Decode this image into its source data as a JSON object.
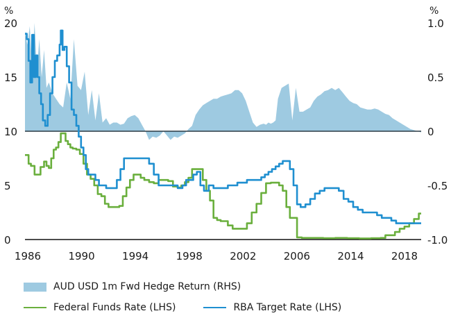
{
  "chart_data": {
    "type": "line",
    "title": "",
    "x_tick_labels": [
      "1986",
      "1990",
      "1994",
      "1998",
      "2002",
      "2006",
      "2014",
      "2018"
    ],
    "x_range": [
      1986,
      2019.2
    ],
    "left_axis": {
      "unit": "%",
      "ylim": [
        0,
        20
      ],
      "ticks": [
        "0",
        "5",
        "10",
        "15",
        "20"
      ],
      "label": "LHS"
    },
    "right_axis": {
      "unit": "%",
      "ylim": [
        -1.0,
        1.0
      ],
      "ticks": [
        "-1.0",
        "-0.5",
        "0",
        "0.5",
        "1.0"
      ],
      "label": "RHS"
    },
    "grid": false,
    "legend_position": "bottom-left",
    "series": [
      {
        "name": "AUD USD 1m Fwd Hedge Return (RHS)",
        "type": "area",
        "axis": "right",
        "color": "#9ecae1",
        "x": [
          1986.0,
          1986.2,
          1986.4,
          1986.6,
          1986.8,
          1987.0,
          1987.2,
          1987.4,
          1987.6,
          1987.8,
          1988.0,
          1988.3,
          1988.6,
          1988.9,
          1989.2,
          1989.5,
          1989.8,
          1990.1,
          1990.4,
          1990.7,
          1991.0,
          1991.3,
          1991.6,
          1991.9,
          1992.2,
          1992.5,
          1992.8,
          1993.1,
          1993.4,
          1993.7,
          1994.0,
          1994.3,
          1994.6,
          1994.9,
          1995.2,
          1995.5,
          1995.8,
          1996.1,
          1996.4,
          1996.7,
          1997.0,
          1997.3,
          1997.6,
          1997.9,
          1998.2,
          1998.5,
          1998.8,
          1999.1,
          1999.4,
          1999.7,
          2000.0,
          2000.3,
          2000.6,
          2000.9,
          2001.2,
          2001.5,
          2001.8,
          2002.1,
          2002.4,
          2002.7,
          2003.0,
          2003.3,
          2003.6,
          2003.9,
          2004.2,
          2004.5,
          2004.8,
          2005.1,
          2005.4,
          2005.7,
          2006.0,
          2006.2,
          2006.4,
          2006.6,
          2006.8,
          2007.0,
          2007.2,
          2007.5,
          2007.8,
          2008.1,
          2008.4,
          2008.7,
          2009.0,
          2009.3,
          2009.6,
          2009.9,
          2010.2,
          2010.5,
          2010.8,
          2011.1,
          2011.4,
          2011.7,
          2012.0,
          2012.3,
          2012.6,
          2012.9,
          2013.2,
          2013.5,
          2013.8,
          2014.1,
          2014.4,
          2014.7,
          2015.0,
          2015.3,
          2015.6,
          2015.9,
          2016.2,
          2016.5,
          2016.8,
          2017.1,
          2017.4,
          2017.7,
          2018.0,
          2018.3,
          2018.6,
          2018.9,
          2019.2
        ],
        "values": [
          0.92,
          0.8,
          0.97,
          0.6,
          1.0,
          0.55,
          0.85,
          0.5,
          0.75,
          0.4,
          0.45,
          0.35,
          0.3,
          0.25,
          0.22,
          0.45,
          0.3,
          0.85,
          0.42,
          0.38,
          0.55,
          0.15,
          0.38,
          0.1,
          0.35,
          0.08,
          0.12,
          0.06,
          0.08,
          0.08,
          0.06,
          0.07,
          0.12,
          0.14,
          0.15,
          0.12,
          0.06,
          0.0,
          -0.08,
          -0.05,
          -0.06,
          -0.04,
          0.0,
          -0.04,
          -0.08,
          -0.05,
          -0.06,
          -0.04,
          -0.02,
          0.02,
          0.05,
          0.15,
          0.2,
          0.24,
          0.26,
          0.28,
          0.3,
          0.3,
          0.32,
          0.33,
          0.34,
          0.35,
          0.38,
          0.38,
          0.35,
          0.28,
          0.18,
          0.08,
          0.04,
          0.06,
          0.07,
          0.06,
          0.08,
          0.07,
          0.08,
          0.1,
          0.3,
          0.4,
          0.42,
          0.44,
          0.1,
          0.4,
          0.18,
          0.18,
          0.2,
          0.22,
          0.28,
          0.32,
          0.34,
          0.37,
          0.38,
          0.4,
          0.38,
          0.4,
          0.36,
          0.32,
          0.28,
          0.26,
          0.25,
          0.22,
          0.21,
          0.2,
          0.2,
          0.21,
          0.2,
          0.18,
          0.16,
          0.15,
          0.12,
          0.1,
          0.08,
          0.06,
          0.04,
          0.02,
          0.01,
          0.0,
          -0.01
        ]
      },
      {
        "name": "Federal Funds Rate (LHS)",
        "type": "line",
        "axis": "left",
        "color": "#6aaf3d",
        "x": [
          1986.0,
          1986.3,
          1986.5,
          1986.8,
          1987.0,
          1987.3,
          1987.6,
          1987.8,
          1988.0,
          1988.2,
          1988.4,
          1988.6,
          1988.8,
          1989.0,
          1989.2,
          1989.4,
          1989.6,
          1989.8,
          1990.0,
          1990.3,
          1990.6,
          1990.9,
          1991.2,
          1991.5,
          1991.8,
          1992.1,
          1992.4,
          1992.7,
          1993.0,
          1993.3,
          1993.6,
          1993.9,
          1994.2,
          1994.5,
          1994.8,
          1995.1,
          1995.4,
          1995.7,
          1996.0,
          1996.4,
          1996.8,
          1997.2,
          1997.6,
          1998.0,
          1998.4,
          1998.8,
          1999.1,
          1999.4,
          1999.7,
          2000.0,
          2000.3,
          2000.6,
          2000.9,
          2001.2,
          2001.5,
          2001.8,
          2002.1,
          2002.4,
          2002.7,
          2003.0,
          2003.4,
          2003.8,
          2004.2,
          2004.6,
          2005.0,
          2005.4,
          2005.8,
          2006.2,
          2006.6,
          2007.0,
          2007.3,
          2007.6,
          2007.9,
          2008.2,
          2008.5,
          2008.8,
          2009.2,
          2010.0,
          2011.0,
          2012.0,
          2013.0,
          2014.0,
          2015.0,
          2015.8,
          2016.2,
          2016.6,
          2017.0,
          2017.4,
          2017.8,
          2018.2,
          2018.6,
          2019.0,
          2019.2
        ],
        "values": [
          7.8,
          7.0,
          6.8,
          6.0,
          6.0,
          6.7,
          7.2,
          6.8,
          6.6,
          7.5,
          8.3,
          8.5,
          9.0,
          9.8,
          9.8,
          9.1,
          8.8,
          8.5,
          8.4,
          8.3,
          7.9,
          7.0,
          6.0,
          5.6,
          5.0,
          4.2,
          4.0,
          3.3,
          3.0,
          3.0,
          3.0,
          3.1,
          4.0,
          4.8,
          5.5,
          6.0,
          6.0,
          5.7,
          5.5,
          5.3,
          5.2,
          5.5,
          5.5,
          5.4,
          4.9,
          4.8,
          5.0,
          5.3,
          5.7,
          6.5,
          6.5,
          6.5,
          5.5,
          4.5,
          3.6,
          2.0,
          1.8,
          1.7,
          1.7,
          1.3,
          1.0,
          1.0,
          1.0,
          1.5,
          2.5,
          3.3,
          4.3,
          5.2,
          5.25,
          5.25,
          5.0,
          4.5,
          3.0,
          2.0,
          2.0,
          0.2,
          0.15,
          0.15,
          0.12,
          0.15,
          0.12,
          0.1,
          0.12,
          0.15,
          0.4,
          0.4,
          0.7,
          1.0,
          1.2,
          1.5,
          1.9,
          2.4,
          2.4
        ]
      },
      {
        "name": "RBA Target Rate (LHS)",
        "type": "line",
        "axis": "left",
        "color": "#1f8fd0",
        "x": [
          1986.0,
          1986.15,
          1986.3,
          1986.45,
          1986.6,
          1986.75,
          1986.9,
          1987.05,
          1987.2,
          1987.35,
          1987.5,
          1987.7,
          1987.9,
          1988.1,
          1988.3,
          1988.5,
          1988.7,
          1988.9,
          1989.0,
          1989.15,
          1989.3,
          1989.5,
          1989.7,
          1989.9,
          1990.1,
          1990.3,
          1990.5,
          1990.7,
          1990.9,
          1991.1,
          1991.3,
          1991.6,
          1991.9,
          1992.2,
          1992.5,
          1992.8,
          1993.1,
          1993.4,
          1993.7,
          1994.0,
          1994.3,
          1994.6,
          1994.9,
          1995.2,
          1995.6,
          1996.0,
          1996.4,
          1996.8,
          1997.2,
          1997.6,
          1998.0,
          1998.4,
          1998.8,
          1999.2,
          1999.5,
          1999.8,
          2000.1,
          2000.4,
          2000.7,
          2001.0,
          2001.4,
          2001.8,
          2002.2,
          2002.6,
          2003.0,
          2003.4,
          2003.8,
          2004.2,
          2004.6,
          2005.0,
          2005.4,
          2005.8,
          2006.1,
          2006.4,
          2006.7,
          2007.0,
          2007.3,
          2007.6,
          2007.9,
          2008.2,
          2008.5,
          2008.8,
          2009.1,
          2009.5,
          2009.9,
          2010.3,
          2010.7,
          2011.1,
          2011.5,
          2011.9,
          2012.3,
          2012.7,
          2013.1,
          2013.5,
          2013.9,
          2014.3,
          2014.7,
          2015.1,
          2015.5,
          2015.9,
          2016.3,
          2016.7,
          2017.1,
          2017.5,
          2017.9,
          2018.3,
          2018.7,
          2019.2
        ],
        "values": [
          19.0,
          18.5,
          16.5,
          14.5,
          18.9,
          15.0,
          17.0,
          15.0,
          13.5,
          12.5,
          11.0,
          10.5,
          11.5,
          13.5,
          15.0,
          16.5,
          17.0,
          18.0,
          19.3,
          17.5,
          17.8,
          16.0,
          14.5,
          12.0,
          11.5,
          10.5,
          9.5,
          8.5,
          7.8,
          6.5,
          6.0,
          6.0,
          5.5,
          5.0,
          5.0,
          4.75,
          4.75,
          4.75,
          5.5,
          6.5,
          7.5,
          7.5,
          7.5,
          7.5,
          7.5,
          7.5,
          7.0,
          6.0,
          5.0,
          5.0,
          5.0,
          5.0,
          4.75,
          5.0,
          5.5,
          5.5,
          6.0,
          6.25,
          5.0,
          4.5,
          5.0,
          4.75,
          4.75,
          4.75,
          5.0,
          5.0,
          5.25,
          5.25,
          5.5,
          5.5,
          5.5,
          5.75,
          6.0,
          6.25,
          6.5,
          6.75,
          7.0,
          7.25,
          7.25,
          6.5,
          5.0,
          3.25,
          3.0,
          3.25,
          3.75,
          4.25,
          4.5,
          4.75,
          4.75,
          4.75,
          4.5,
          3.75,
          3.5,
          3.0,
          2.75,
          2.5,
          2.5,
          2.5,
          2.25,
          2.0,
          2.0,
          1.75,
          1.5,
          1.5,
          1.5,
          1.5,
          1.5,
          1.5
        ]
      }
    ]
  },
  "legend": {
    "area_label": "AUD USD 1m Fwd Hedge Return (RHS)",
    "ff_label": "Federal Funds Rate (LHS)",
    "rba_label": "RBA Target Rate (LHS)"
  }
}
